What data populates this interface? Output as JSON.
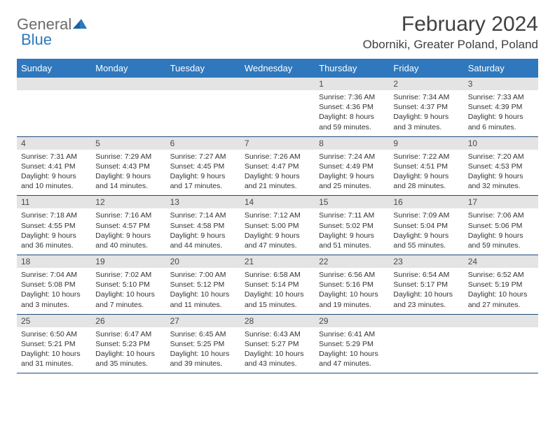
{
  "logo": {
    "text1": "General",
    "text2": "Blue"
  },
  "title": "February 2024",
  "location": "Oborniki, Greater Poland, Poland",
  "colors": {
    "header_bg": "#2f78bd",
    "header_text": "#ffffff",
    "daynum_bg": "#e4e4e4",
    "border_top": "#7d9fc5",
    "border_bottom": "#1f4a7a",
    "logo_gray": "#6b6b6b",
    "logo_blue": "#2f78bd"
  },
  "weekdays": [
    "Sunday",
    "Monday",
    "Tuesday",
    "Wednesday",
    "Thursday",
    "Friday",
    "Saturday"
  ],
  "weeks": [
    [
      null,
      null,
      null,
      null,
      {
        "n": "1",
        "sr": "7:36 AM",
        "ss": "4:36 PM",
        "dl": "8 hours and 59 minutes."
      },
      {
        "n": "2",
        "sr": "7:34 AM",
        "ss": "4:37 PM",
        "dl": "9 hours and 3 minutes."
      },
      {
        "n": "3",
        "sr": "7:33 AM",
        "ss": "4:39 PM",
        "dl": "9 hours and 6 minutes."
      }
    ],
    [
      {
        "n": "4",
        "sr": "7:31 AM",
        "ss": "4:41 PM",
        "dl": "9 hours and 10 minutes."
      },
      {
        "n": "5",
        "sr": "7:29 AM",
        "ss": "4:43 PM",
        "dl": "9 hours and 14 minutes."
      },
      {
        "n": "6",
        "sr": "7:27 AM",
        "ss": "4:45 PM",
        "dl": "9 hours and 17 minutes."
      },
      {
        "n": "7",
        "sr": "7:26 AM",
        "ss": "4:47 PM",
        "dl": "9 hours and 21 minutes."
      },
      {
        "n": "8",
        "sr": "7:24 AM",
        "ss": "4:49 PM",
        "dl": "9 hours and 25 minutes."
      },
      {
        "n": "9",
        "sr": "7:22 AM",
        "ss": "4:51 PM",
        "dl": "9 hours and 28 minutes."
      },
      {
        "n": "10",
        "sr": "7:20 AM",
        "ss": "4:53 PM",
        "dl": "9 hours and 32 minutes."
      }
    ],
    [
      {
        "n": "11",
        "sr": "7:18 AM",
        "ss": "4:55 PM",
        "dl": "9 hours and 36 minutes."
      },
      {
        "n": "12",
        "sr": "7:16 AM",
        "ss": "4:57 PM",
        "dl": "9 hours and 40 minutes."
      },
      {
        "n": "13",
        "sr": "7:14 AM",
        "ss": "4:58 PM",
        "dl": "9 hours and 44 minutes."
      },
      {
        "n": "14",
        "sr": "7:12 AM",
        "ss": "5:00 PM",
        "dl": "9 hours and 47 minutes."
      },
      {
        "n": "15",
        "sr": "7:11 AM",
        "ss": "5:02 PM",
        "dl": "9 hours and 51 minutes."
      },
      {
        "n": "16",
        "sr": "7:09 AM",
        "ss": "5:04 PM",
        "dl": "9 hours and 55 minutes."
      },
      {
        "n": "17",
        "sr": "7:06 AM",
        "ss": "5:06 PM",
        "dl": "9 hours and 59 minutes."
      }
    ],
    [
      {
        "n": "18",
        "sr": "7:04 AM",
        "ss": "5:08 PM",
        "dl": "10 hours and 3 minutes."
      },
      {
        "n": "19",
        "sr": "7:02 AM",
        "ss": "5:10 PM",
        "dl": "10 hours and 7 minutes."
      },
      {
        "n": "20",
        "sr": "7:00 AM",
        "ss": "5:12 PM",
        "dl": "10 hours and 11 minutes."
      },
      {
        "n": "21",
        "sr": "6:58 AM",
        "ss": "5:14 PM",
        "dl": "10 hours and 15 minutes."
      },
      {
        "n": "22",
        "sr": "6:56 AM",
        "ss": "5:16 PM",
        "dl": "10 hours and 19 minutes."
      },
      {
        "n": "23",
        "sr": "6:54 AM",
        "ss": "5:17 PM",
        "dl": "10 hours and 23 minutes."
      },
      {
        "n": "24",
        "sr": "6:52 AM",
        "ss": "5:19 PM",
        "dl": "10 hours and 27 minutes."
      }
    ],
    [
      {
        "n": "25",
        "sr": "6:50 AM",
        "ss": "5:21 PM",
        "dl": "10 hours and 31 minutes."
      },
      {
        "n": "26",
        "sr": "6:47 AM",
        "ss": "5:23 PM",
        "dl": "10 hours and 35 minutes."
      },
      {
        "n": "27",
        "sr": "6:45 AM",
        "ss": "5:25 PM",
        "dl": "10 hours and 39 minutes."
      },
      {
        "n": "28",
        "sr": "6:43 AM",
        "ss": "5:27 PM",
        "dl": "10 hours and 43 minutes."
      },
      {
        "n": "29",
        "sr": "6:41 AM",
        "ss": "5:29 PM",
        "dl": "10 hours and 47 minutes."
      },
      null,
      null
    ]
  ],
  "labels": {
    "sunrise": "Sunrise:",
    "sunset": "Sunset:",
    "daylight": "Daylight:"
  }
}
